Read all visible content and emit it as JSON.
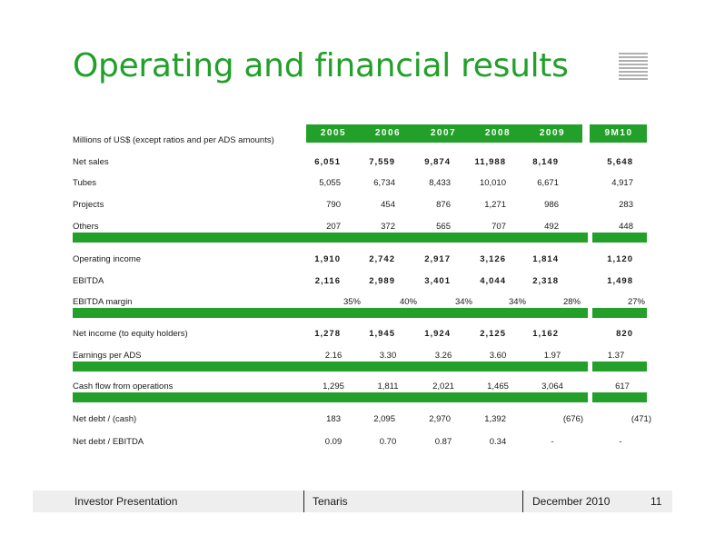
{
  "title": "Operating and financial results",
  "units_label": "Millions of US$ (except ratios and per ADS amounts)",
  "columns": [
    "2005",
    "2006",
    "2007",
    "2008",
    "2009",
    "9M10"
  ],
  "rows": [
    {
      "label": "Net sales",
      "values": [
        "6,051",
        "7,559",
        "9,874",
        "11,988",
        "8,149",
        "5,648"
      ]
    },
    {
      "label": "Tubes",
      "values": [
        "5,055",
        "6,734",
        "8,433",
        "10,010",
        "6,671",
        "4,917"
      ]
    },
    {
      "label": "Projects",
      "values": [
        "790",
        "454",
        "876",
        "1,271",
        "986",
        "283"
      ]
    },
    {
      "label": "Others",
      "values": [
        "207",
        "372",
        "565",
        "707",
        "492",
        "448"
      ]
    },
    {
      "label": "Operating income",
      "values": [
        "1,910",
        "2,742",
        "2,917",
        "3,126",
        "1,814",
        "1,120"
      ]
    },
    {
      "label": "EBITDA",
      "values": [
        "2,116",
        "2,989",
        "3,401",
        "4,044",
        "2,318",
        "1,498"
      ]
    },
    {
      "label": "EBITDA margin",
      "values": [
        "35%",
        "40%",
        "34%",
        "34%",
        "28%",
        "27%"
      ]
    },
    {
      "label": "Net income (to equity holders)",
      "values": [
        "1,278",
        "1,945",
        "1,924",
        "2,125",
        "1,162",
        "820"
      ]
    },
    {
      "label": "Earnings per ADS",
      "values": [
        "2.16",
        "3.30",
        "3.26",
        "3.60",
        "1.97",
        "1.37"
      ]
    },
    {
      "label": "Cash flow from operations",
      "values": [
        "1,295",
        "1,811",
        "2,021",
        "1,465",
        "3,064",
        "617"
      ]
    },
    {
      "label": "Net debt / (cash)",
      "values": [
        "183",
        "2,095",
        "2,970",
        "1,392",
        "(676)",
        "(471)"
      ]
    },
    {
      "label": "Net debt / EBITDA",
      "values": [
        "0.09",
        "0.70",
        "0.87",
        "0.34",
        "-",
        "-"
      ]
    }
  ],
  "footer": {
    "left": "Investor Presentation",
    "center": "Tenaris",
    "date": "December 2010",
    "page": "11"
  },
  "accent_color": "#22a02a"
}
